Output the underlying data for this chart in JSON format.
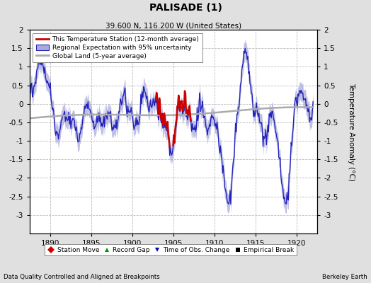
{
  "title": "PALISADE (1)",
  "subtitle": "39.600 N, 116.200 W (United States)",
  "xlabel_years": [
    1890,
    1895,
    1900,
    1905,
    1910,
    1915,
    1920
  ],
  "xmin": 1887.5,
  "xmax": 1922.5,
  "ymin": -3.5,
  "ymax": 2.0,
  "yticks": [
    -3.0,
    -2.5,
    -2.0,
    -1.5,
    -1.0,
    -0.5,
    0.0,
    0.5,
    1.0,
    1.5,
    2.0
  ],
  "ytick_labels": [
    "-3",
    "-2.5",
    "-2",
    "-1.5",
    "-1",
    "-0.5",
    "0",
    "0.5",
    "1",
    "1.5",
    "2"
  ],
  "ylabel": "Temperature Anomaly (°C)",
  "footer_left": "Data Quality Controlled and Aligned at Breakpoints",
  "footer_right": "Berkeley Earth",
  "legend_entries": [
    {
      "label": "This Temperature Station (12-month average)",
      "color": "#cc0000",
      "lw": 2
    },
    {
      "label": "Regional Expectation with 95% uncertainty",
      "line_color": "#2222bb",
      "fill_color": "#aaaadd"
    },
    {
      "label": "Global Land (5-year average)",
      "color": "#aaaaaa",
      "lw": 2
    }
  ],
  "marker_legend": [
    {
      "label": "Station Move",
      "color": "#cc0000",
      "marker": "D"
    },
    {
      "label": "Record Gap",
      "color": "#009900",
      "marker": "^"
    },
    {
      "label": "Time of Obs. Change",
      "color": "#0000cc",
      "marker": "v"
    },
    {
      "label": "Empirical Break",
      "color": "#000000",
      "marker": "s"
    }
  ],
  "background_color": "#e0e0e0",
  "plot_bg_color": "#ffffff",
  "grid_color": "#bbbbbb",
  "regional_line_color": "#2222bb",
  "regional_fill_color": "#aaaadd",
  "station_line_color": "#cc0000",
  "global_line_color": "#aaaaaa",
  "figsize": [
    5.24,
    4.0
  ],
  "dpi": 100
}
